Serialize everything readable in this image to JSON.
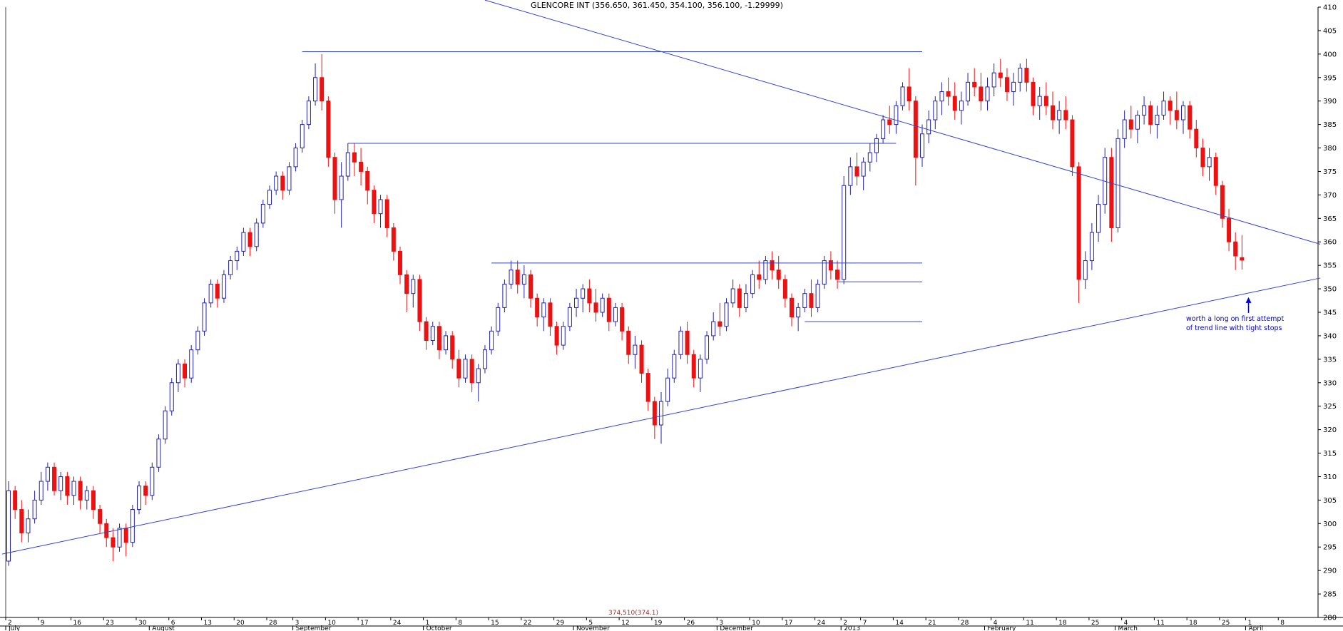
{
  "title": "GLENCORE INT (356.650, 361.450, 354.100, 356.100, -1.29999)",
  "annotation": {
    "line1": "worth a long on first attempt",
    "line2": "of trend line with tight stops"
  },
  "overlay_text": "374,510(374.1)",
  "chart_data": {
    "type": "candlestick",
    "security": "GLENCORE INT",
    "quote": {
      "open": 356.65,
      "high": 361.45,
      "low": 354.1,
      "close": 356.1,
      "change": -1.29999
    },
    "grid": false,
    "ylim": [
      280,
      410
    ],
    "yticks": [
      410,
      405,
      400,
      395,
      390,
      385,
      380,
      375,
      370,
      365,
      360,
      355,
      350,
      345,
      340,
      335,
      330,
      325,
      320,
      315,
      310,
      305,
      300,
      295,
      290,
      285,
      280
    ],
    "months": [
      {
        "d": 0,
        "label": "July"
      },
      {
        "d": 22,
        "label": "August"
      },
      {
        "d": 44,
        "label": "September"
      },
      {
        "d": 64,
        "label": "October"
      },
      {
        "d": 87,
        "label": "November"
      },
      {
        "d": 109,
        "label": "December"
      },
      {
        "d": 128,
        "label": "2013"
      },
      {
        "d": 150,
        "label": "February"
      },
      {
        "d": 170,
        "label": "March"
      },
      {
        "d": 190,
        "label": "April"
      }
    ],
    "week_ticks": [
      {
        "d": 0,
        "label": "2"
      },
      {
        "d": 5,
        "label": "9"
      },
      {
        "d": 10,
        "label": "16"
      },
      {
        "d": 15,
        "label": "23"
      },
      {
        "d": 20,
        "label": "30"
      },
      {
        "d": 25,
        "label": "6"
      },
      {
        "d": 30,
        "label": "13"
      },
      {
        "d": 35,
        "label": "20"
      },
      {
        "d": 40,
        "label": "28"
      },
      {
        "d": 44,
        "label": "3"
      },
      {
        "d": 49,
        "label": "10"
      },
      {
        "d": 54,
        "label": "17"
      },
      {
        "d": 59,
        "label": "24"
      },
      {
        "d": 64,
        "label": "1"
      },
      {
        "d": 69,
        "label": "8"
      },
      {
        "d": 74,
        "label": "15"
      },
      {
        "d": 79,
        "label": "22"
      },
      {
        "d": 84,
        "label": "29"
      },
      {
        "d": 89,
        "label": "5"
      },
      {
        "d": 94,
        "label": "12"
      },
      {
        "d": 99,
        "label": "19"
      },
      {
        "d": 104,
        "label": "26"
      },
      {
        "d": 109,
        "label": "3"
      },
      {
        "d": 114,
        "label": "10"
      },
      {
        "d": 119,
        "label": "17"
      },
      {
        "d": 124,
        "label": "24"
      },
      {
        "d": 128,
        "label": "2"
      },
      {
        "d": 131,
        "label": "7"
      },
      {
        "d": 136,
        "label": "14"
      },
      {
        "d": 141,
        "label": "21"
      },
      {
        "d": 146,
        "label": "28"
      },
      {
        "d": 151,
        "label": "4"
      },
      {
        "d": 156,
        "label": "11"
      },
      {
        "d": 161,
        "label": "18"
      },
      {
        "d": 166,
        "label": "25"
      },
      {
        "d": 171,
        "label": "4"
      },
      {
        "d": 176,
        "label": "11"
      },
      {
        "d": 181,
        "label": "18"
      },
      {
        "d": 186,
        "label": "25"
      },
      {
        "d": 190,
        "label": "1"
      },
      {
        "d": 195,
        "label": "8"
      }
    ],
    "horizontal_lines": [
      {
        "price": 400.5,
        "d1": 45,
        "d2": 140
      },
      {
        "price": 381,
        "d1": 52,
        "d2": 136
      },
      {
        "price": 355.5,
        "d1": 74,
        "d2": 140
      },
      {
        "price": 351.5,
        "d1": 127,
        "d2": 140
      },
      {
        "price": 343,
        "d1": 122,
        "d2": 140
      }
    ],
    "trendlines": [
      {
        "d1": 73,
        "p1": 411.5,
        "d2": 201,
        "p2": 359.5,
        "name": "descending-resistance"
      },
      {
        "d1": -1,
        "p1": 293.5,
        "d2": 201,
        "p2": 352.3,
        "name": "ascending-support"
      }
    ],
    "annotation": {
      "line1": "worth a long on first attempt",
      "line2": "of trend line with tight stops",
      "arrow": {
        "d": 190,
        "price": 348.2
      }
    },
    "colors": {
      "up": "#2222b2",
      "down": "#ee1111",
      "line": "#3344cc",
      "axis": "#000000",
      "annotation": "#0000cc",
      "overlay": "#993333"
    },
    "candles": [
      [
        292,
        309,
        291,
        307
      ],
      [
        307,
        308,
        301,
        303
      ],
      [
        303,
        305,
        296,
        298
      ],
      [
        298,
        303,
        296,
        301
      ],
      [
        301,
        307,
        300,
        305
      ],
      [
        305,
        311,
        304,
        309
      ],
      [
        309,
        313,
        307,
        312
      ],
      [
        312,
        313,
        306,
        307
      ],
      [
        307,
        311,
        305,
        310
      ],
      [
        310,
        311,
        304,
        306
      ],
      [
        306,
        310,
        304,
        309
      ],
      [
        309,
        310,
        303,
        305
      ],
      [
        305,
        308,
        303,
        307
      ],
      [
        307,
        308,
        301,
        303
      ],
      [
        303,
        304,
        298,
        300
      ],
      [
        300,
        301,
        295,
        297
      ],
      [
        297,
        299,
        292,
        295
      ],
      [
        295,
        300,
        294,
        299
      ],
      [
        299,
        300,
        293,
        296
      ],
      [
        296,
        304,
        295,
        303
      ],
      [
        303,
        309,
        302,
        308
      ],
      [
        308,
        309,
        304,
        306
      ],
      [
        306,
        313,
        305,
        312
      ],
      [
        312,
        319,
        311,
        318
      ],
      [
        318,
        325,
        317,
        324
      ],
      [
        324,
        331,
        323,
        330
      ],
      [
        330,
        335,
        328,
        334
      ],
      [
        334,
        335,
        329,
        331
      ],
      [
        331,
        338,
        330,
        337
      ],
      [
        337,
        342,
        336,
        341
      ],
      [
        341,
        348,
        340,
        347
      ],
      [
        347,
        352,
        346,
        351
      ],
      [
        351,
        352,
        346,
        348
      ],
      [
        348,
        354,
        347,
        353
      ],
      [
        353,
        357,
        352,
        356
      ],
      [
        356,
        359,
        354,
        358
      ],
      [
        358,
        363,
        357,
        362
      ],
      [
        362,
        363,
        357,
        359
      ],
      [
        359,
        365,
        358,
        364
      ],
      [
        364,
        369,
        363,
        368
      ],
      [
        368,
        372,
        367,
        371
      ],
      [
        371,
        375,
        370,
        374
      ],
      [
        374,
        375,
        369,
        371
      ],
      [
        371,
        377,
        370,
        376
      ],
      [
        376,
        381,
        375,
        380
      ],
      [
        380,
        386,
        379,
        385
      ],
      [
        385,
        391,
        384,
        390
      ],
      [
        390,
        398,
        389,
        395
      ],
      [
        395,
        400,
        388,
        390
      ],
      [
        390,
        391,
        376,
        378
      ],
      [
        378,
        379,
        366,
        369
      ],
      [
        369,
        377,
        363,
        374
      ],
      [
        374,
        381,
        373,
        379
      ],
      [
        379,
        381,
        374,
        377
      ],
      [
        377,
        380,
        372,
        375
      ],
      [
        375,
        376,
        368,
        371
      ],
      [
        371,
        372,
        364,
        366
      ],
      [
        366,
        370,
        363,
        369
      ],
      [
        369,
        370,
        361,
        363
      ],
      [
        363,
        364,
        356,
        358
      ],
      [
        358,
        359,
        351,
        353
      ],
      [
        353,
        354,
        345,
        349
      ],
      [
        349,
        353,
        346,
        352
      ],
      [
        352,
        353,
        341,
        343
      ],
      [
        343,
        344,
        337,
        339
      ],
      [
        339,
        343,
        338,
        342
      ],
      [
        342,
        343,
        335,
        337
      ],
      [
        337,
        341,
        336,
        340
      ],
      [
        340,
        341,
        333,
        335
      ],
      [
        335,
        337,
        329,
        331
      ],
      [
        331,
        336,
        330,
        335
      ],
      [
        335,
        336,
        328,
        330
      ],
      [
        330,
        334,
        326,
        333
      ],
      [
        333,
        338,
        332,
        337
      ],
      [
        337,
        342,
        336,
        341
      ],
      [
        341,
        347,
        340,
        346
      ],
      [
        346,
        352,
        345,
        351
      ],
      [
        351,
        356,
        350,
        354
      ],
      [
        354,
        356,
        349,
        351
      ],
      [
        351,
        355,
        348,
        353
      ],
      [
        353,
        354,
        346,
        348
      ],
      [
        348,
        349,
        342,
        344
      ],
      [
        344,
        348,
        341,
        347
      ],
      [
        347,
        348,
        340,
        342
      ],
      [
        342,
        343,
        336,
        338
      ],
      [
        338,
        343,
        337,
        342
      ],
      [
        342,
        347,
        341,
        346
      ],
      [
        346,
        350,
        344,
        348
      ],
      [
        348,
        351,
        345,
        350
      ],
      [
        350,
        352,
        345,
        347
      ],
      [
        347,
        350,
        343,
        345
      ],
      [
        345,
        349,
        344,
        348
      ],
      [
        348,
        349,
        341,
        343
      ],
      [
        343,
        347,
        342,
        346
      ],
      [
        346,
        347,
        339,
        341
      ],
      [
        341,
        342,
        334,
        336
      ],
      [
        336,
        340,
        333,
        338
      ],
      [
        338,
        339,
        330,
        332
      ],
      [
        332,
        333,
        324,
        326
      ],
      [
        326,
        327,
        318,
        321
      ],
      [
        321,
        328,
        317,
        326
      ],
      [
        326,
        333,
        325,
        331
      ],
      [
        331,
        337,
        330,
        336
      ],
      [
        336,
        342,
        335,
        341
      ],
      [
        341,
        343,
        334,
        336
      ],
      [
        336,
        337,
        329,
        331
      ],
      [
        331,
        336,
        328,
        335
      ],
      [
        335,
        341,
        334,
        340
      ],
      [
        340,
        345,
        339,
        343
      ],
      [
        343,
        347,
        340,
        342
      ],
      [
        342,
        348,
        341,
        347
      ],
      [
        347,
        352,
        346,
        350
      ],
      [
        350,
        351,
        344,
        346
      ],
      [
        346,
        351,
        345,
        349
      ],
      [
        349,
        354,
        348,
        353
      ],
      [
        353,
        356,
        350,
        352
      ],
      [
        352,
        357,
        351,
        356
      ],
      [
        356,
        358,
        352,
        354
      ],
      [
        354,
        357,
        350,
        352
      ],
      [
        352,
        353,
        346,
        348
      ],
      [
        348,
        349,
        342,
        344
      ],
      [
        344,
        347,
        341,
        346
      ],
      [
        346,
        350,
        345,
        349
      ],
      [
        349,
        352,
        344,
        346
      ],
      [
        346,
        352,
        345,
        351
      ],
      [
        351,
        357,
        350,
        356
      ],
      [
        356,
        358,
        352,
        354
      ],
      [
        354,
        356,
        350,
        352
      ],
      [
        352,
        374,
        351,
        372
      ],
      [
        372,
        378,
        370,
        376
      ],
      [
        376,
        379,
        372,
        374
      ],
      [
        374,
        378,
        371,
        377
      ],
      [
        377,
        381,
        375,
        379
      ],
      [
        379,
        383,
        377,
        382
      ],
      [
        382,
        387,
        381,
        386
      ],
      [
        386,
        389,
        383,
        385
      ],
      [
        385,
        390,
        383,
        389
      ],
      [
        389,
        394,
        388,
        393
      ],
      [
        393,
        397,
        388,
        390
      ],
      [
        390,
        391,
        372,
        378
      ],
      [
        378,
        385,
        376,
        383
      ],
      [
        383,
        388,
        381,
        386
      ],
      [
        386,
        391,
        384,
        390
      ],
      [
        390,
        394,
        387,
        392
      ],
      [
        392,
        395,
        389,
        391
      ],
      [
        391,
        394,
        386,
        388
      ],
      [
        388,
        392,
        385,
        390
      ],
      [
        390,
        396,
        389,
        394
      ],
      [
        394,
        397,
        391,
        393
      ],
      [
        393,
        396,
        388,
        390
      ],
      [
        390,
        395,
        388,
        393
      ],
      [
        393,
        398,
        391,
        396
      ],
      [
        396,
        399,
        393,
        395
      ],
      [
        395,
        397,
        390,
        392
      ],
      [
        392,
        396,
        389,
        394
      ],
      [
        394,
        398,
        392,
        397
      ],
      [
        397,
        399,
        392,
        394
      ],
      [
        394,
        395,
        387,
        389
      ],
      [
        389,
        393,
        386,
        391
      ],
      [
        391,
        394,
        387,
        389
      ],
      [
        389,
        392,
        384,
        386
      ],
      [
        386,
        390,
        383,
        388
      ],
      [
        388,
        391,
        384,
        386
      ],
      [
        386,
        387,
        374,
        376
      ],
      [
        376,
        377,
        347,
        352
      ],
      [
        352,
        358,
        350,
        356
      ],
      [
        356,
        364,
        354,
        362
      ],
      [
        362,
        370,
        360,
        368
      ],
      [
        368,
        380,
        366,
        378
      ],
      [
        378,
        380,
        360,
        363
      ],
      [
        363,
        384,
        362,
        382
      ],
      [
        382,
        388,
        380,
        386
      ],
      [
        386,
        389,
        382,
        384
      ],
      [
        384,
        388,
        381,
        387
      ],
      [
        387,
        391,
        385,
        389
      ],
      [
        389,
        390,
        383,
        385
      ],
      [
        385,
        389,
        382,
        387
      ],
      [
        387,
        392,
        386,
        390
      ],
      [
        390,
        391,
        385,
        388
      ],
      [
        388,
        392,
        384,
        386
      ],
      [
        386,
        390,
        383,
        389
      ],
      [
        389,
        390,
        382,
        384
      ],
      [
        384,
        386,
        378,
        380
      ],
      [
        380,
        382,
        374,
        376
      ],
      [
        376,
        380,
        373,
        378
      ],
      [
        378,
        379,
        370,
        372
      ],
      [
        372,
        373,
        363,
        365
      ],
      [
        365,
        367,
        358,
        360
      ],
      [
        360,
        362,
        354,
        357
      ],
      [
        356.65,
        361.45,
        354.1,
        356.1
      ]
    ]
  }
}
